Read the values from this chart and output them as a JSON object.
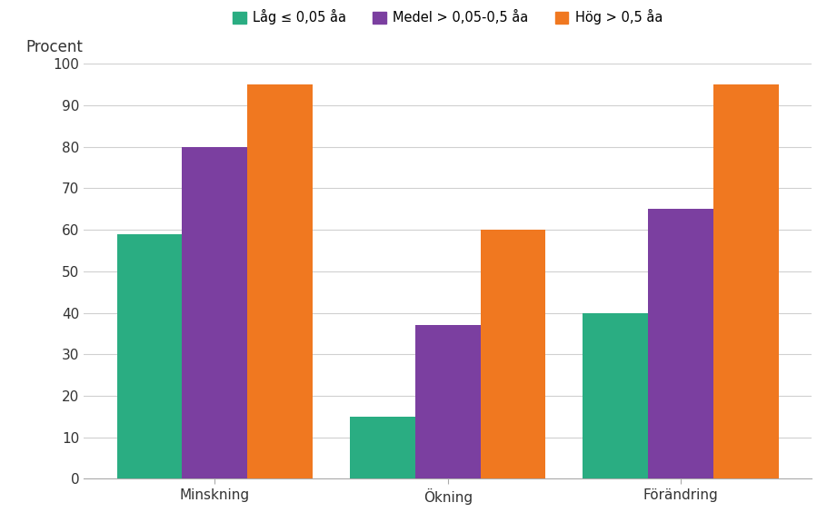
{
  "categories": [
    "Minskning",
    "Ökning",
    "Förändring"
  ],
  "series": [
    {
      "label": "Låg ≤ 0,05 åa",
      "values": [
        59,
        15,
        40
      ],
      "color": "#2aad82"
    },
    {
      "label": "Medel > 0,05-0,5 åa",
      "values": [
        80,
        37,
        65
      ],
      "color": "#7b3fa0"
    },
    {
      "label": "Hög > 0,5 åa",
      "values": [
        95,
        60,
        95
      ],
      "color": "#f07820"
    }
  ],
  "ylabel": "Procent",
  "ylim": [
    0,
    100
  ],
  "yticks": [
    0,
    10,
    20,
    30,
    40,
    50,
    60,
    70,
    80,
    90,
    100
  ],
  "background_color": "#ffffff",
  "bar_width": 0.28,
  "legend_fontsize": 10.5,
  "tick_fontsize": 11,
  "ylabel_fontsize": 12
}
